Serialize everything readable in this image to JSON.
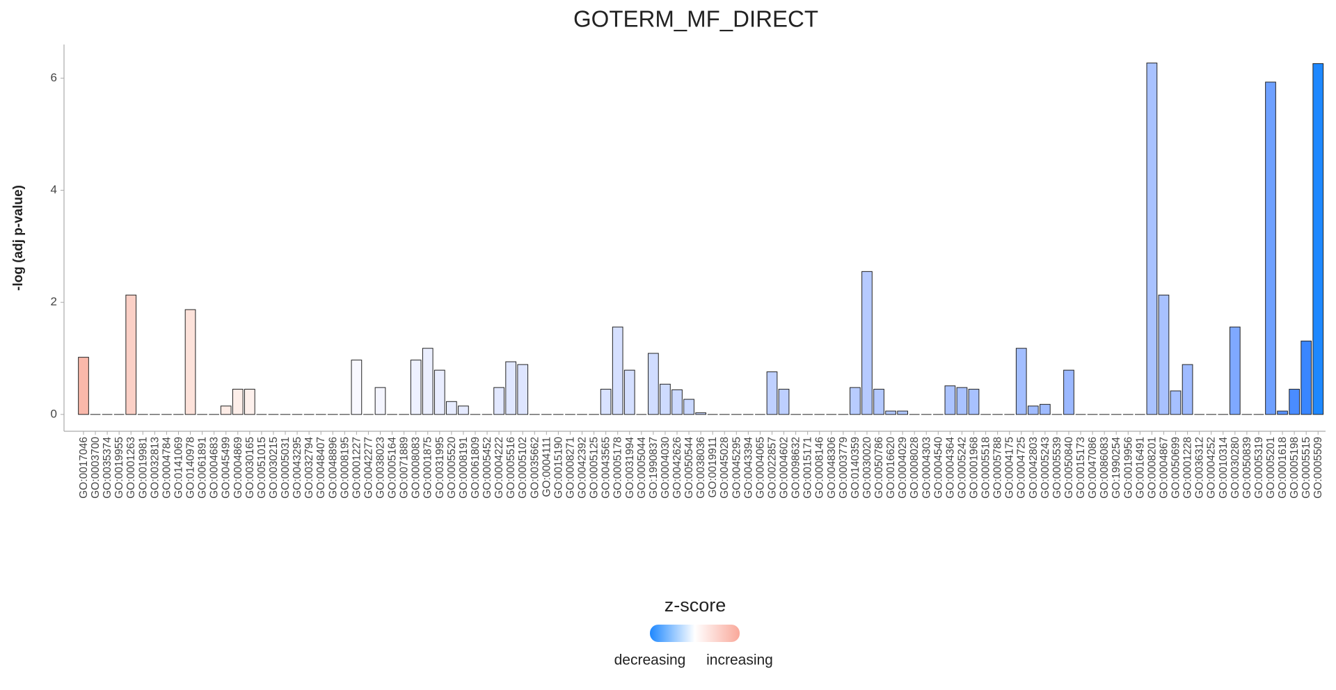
{
  "chart_data": {
    "type": "bar",
    "title": "GOTERM_MF_DIRECT",
    "y_label": "-log (adj p-value)",
    "categories": [
      "GO:0017046",
      "GO:0003700",
      "GO:0035374",
      "GO:0019955",
      "GO:0001263",
      "GO:0019981",
      "GO:0032813",
      "GO:0004784",
      "GO:0141069",
      "GO:0140978",
      "GO:0061891",
      "GO:0004683",
      "GO:0045499",
      "GO:0004869",
      "GO:0030165",
      "GO:0051015",
      "GO:0030215",
      "GO:0005031",
      "GO:0043295",
      "GO:0032794",
      "GO:0048407",
      "GO:0048896",
      "GO:0008195",
      "GO:0001227",
      "GO:0042277",
      "GO:0038023",
      "GO:0005164",
      "GO:0071889",
      "GO:0008083",
      "GO:0001875",
      "GO:0031995",
      "GO:0005520",
      "GO:0008191",
      "GO:0061809",
      "GO:0005452",
      "GO:0004222",
      "GO:0005516",
      "GO:0005102",
      "GO:0035662",
      "GO:0004111",
      "GO:0015190",
      "GO:0008271",
      "GO:0042392",
      "GO:0005125",
      "GO:0043565",
      "GO:0005178",
      "GO:0031994",
      "GO:0005044",
      "GO:1990837",
      "GO:0004030",
      "GO:0042626",
      "GO:0050544",
      "GO:0038036",
      "GO:0019911",
      "GO:0045028",
      "GO:0045295",
      "GO:0043394",
      "GO:0004065",
      "GO:0022857",
      "GO:0004602",
      "GO:0098632",
      "GO:0015171",
      "GO:0008146",
      "GO:0048306",
      "GO:0003779",
      "GO:0140359",
      "GO:0030020",
      "GO:0050786",
      "GO:0016620",
      "GO:0004029",
      "GO:0008028",
      "GO:0004303",
      "GO:0004540",
      "GO:0004364",
      "GO:0005242",
      "GO:0001968",
      "GO:0005518",
      "GO:0005788",
      "GO:0004175",
      "GO:0004725",
      "GO:0042803",
      "GO:0005243",
      "GO:0005539",
      "GO:0050840",
      "GO:0015173",
      "GO:0047086",
      "GO:0086083",
      "GO:1990254",
      "GO:0019956",
      "GO:0016491",
      "GO:0008201",
      "GO:0004867",
      "GO:0050699",
      "GO:0001228",
      "GO:0036312",
      "GO:0004252",
      "GO:0010314",
      "GO:0030280",
      "GO:0050839",
      "GO:0005319",
      "GO:0005201",
      "GO:0001618",
      "GO:0005198",
      "GO:0005515",
      "GO:0005509"
    ],
    "values": [
      1.02,
      0,
      0,
      0,
      2.13,
      0,
      0,
      0,
      0,
      1.87,
      0,
      0,
      0.15,
      0.45,
      0.45,
      0,
      0,
      0,
      0,
      0,
      0,
      0,
      0,
      0.97,
      0,
      0.48,
      0,
      0,
      0.97,
      1.18,
      0.79,
      0.23,
      0.15,
      0,
      0,
      0.48,
      0.94,
      0.89,
      0,
      0,
      0,
      0,
      0,
      0,
      0.45,
      1.56,
      0.79,
      0,
      1.09,
      0.54,
      0.44,
      0.27,
      0.03,
      0,
      0,
      0,
      0,
      0,
      0.76,
      0.45,
      0,
      0,
      0,
      0,
      0,
      0.48,
      2.55,
      0.45,
      0.06,
      0.06,
      0,
      0,
      0,
      0.51,
      0.48,
      0.45,
      0,
      0,
      0,
      1.18,
      0.15,
      0.18,
      0,
      0.79,
      0,
      0,
      0,
      0,
      0,
      0,
      6.27,
      2.13,
      0.42,
      0.89,
      0,
      0,
      0,
      1.56,
      0,
      0,
      5.93,
      0.06,
      0.45,
      1.31,
      6.26
    ],
    "colors": [
      "#f9b8aa",
      null,
      null,
      null,
      "#fbd0c6",
      null,
      null,
      null,
      null,
      "#fde2da",
      null,
      null,
      "#fdece6",
      "#fdeee9",
      "#fdf0ec",
      null,
      null,
      null,
      null,
      null,
      null,
      null,
      null,
      "#f8f8ff",
      null,
      "#f4f5ff",
      null,
      null,
      "#eef1ff",
      "#ebefff",
      "#e9edff",
      "#e7ecff",
      "#e5eaff",
      null,
      null,
      "#e2e8ff",
      "#e0e7ff",
      "#dee5ff",
      null,
      null,
      null,
      null,
      null,
      null,
      "#d8e2ff",
      "#d6e0ff",
      "#d4dfff",
      null,
      "#d0dcff",
      "#cedbff",
      "#ccd9ff",
      "#cad8ff",
      "#c8d7ff",
      null,
      null,
      null,
      null,
      null,
      "#bfd0ff",
      "#bdcfff",
      null,
      null,
      null,
      null,
      null,
      "#b8ccff",
      "#b6caff",
      "#b4c9ff",
      "#b2c8ff",
      "#b0c7ff",
      null,
      null,
      null,
      "#abc3ff",
      "#a9c2ff",
      "#a8c1ff",
      null,
      null,
      null,
      "#a3beff",
      "#a1bcff",
      "#9fbbff",
      null,
      "#9bb8ff",
      null,
      null,
      null,
      null,
      null,
      null,
      "#a9c2ff",
      "#a8c1ff",
      "#a6c0ff",
      "#9fbbff",
      null,
      null,
      null,
      "#7fa9ff",
      null,
      null,
      "#6ea0ff",
      "#5a93ff",
      "#4a8cff",
      "#3a86ff",
      "#1e88ff"
    ],
    "ylim": [
      -0.3,
      6.6
    ],
    "yticks": [
      0,
      2,
      4,
      6
    ],
    "grid": false,
    "legend": {
      "title": "z-score",
      "labels": [
        "decreasing",
        "increasing"
      ],
      "colors": [
        "#1e88ff",
        "#ffffff",
        "#f9a89a"
      ],
      "position": "bottom"
    }
  }
}
